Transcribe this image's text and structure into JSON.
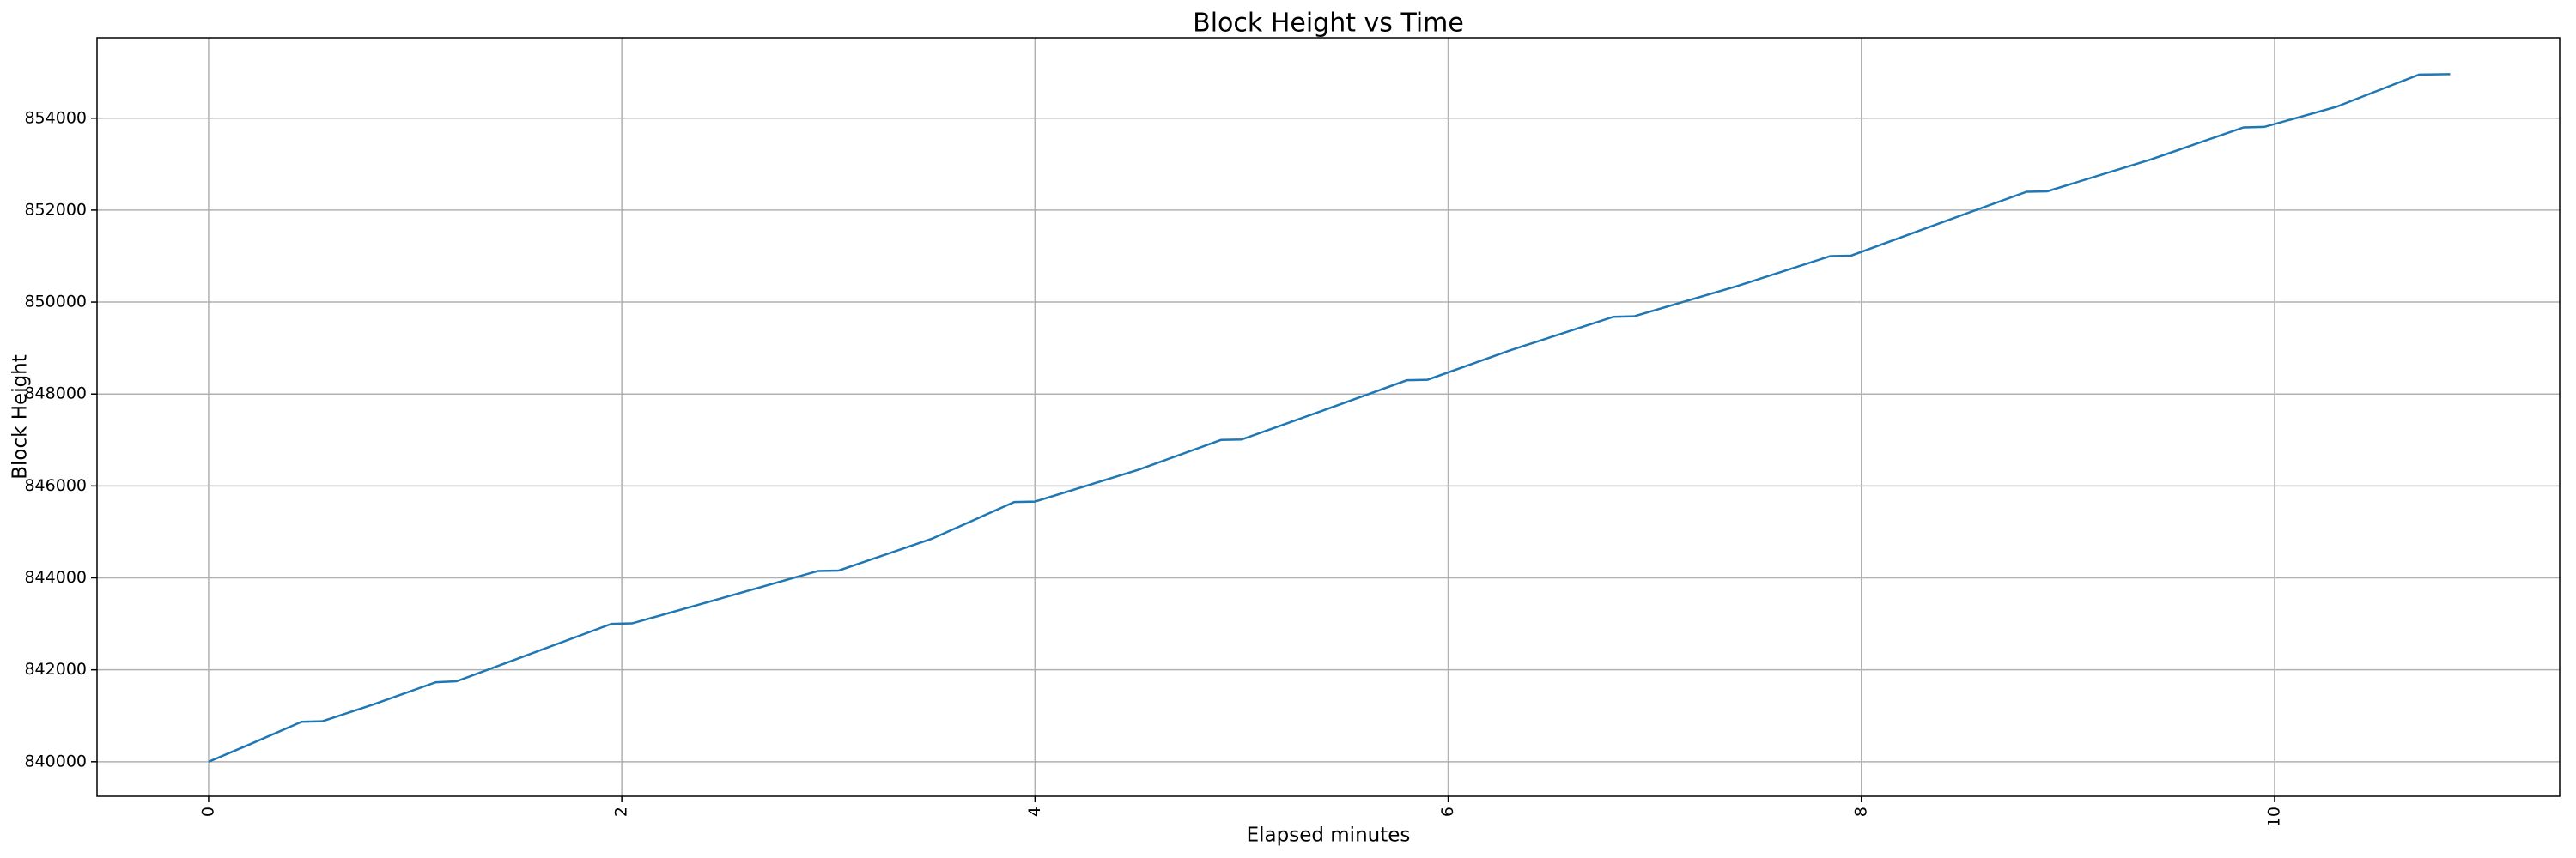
{
  "chart_data": {
    "type": "line",
    "title": "Block Height vs Time",
    "x_label": "Elapsed minutes",
    "y_label": "Block Height",
    "x": [
      0,
      0.2,
      0.45,
      0.55,
      0.8,
      1.1,
      1.2,
      1.5,
      1.95,
      2.05,
      2.5,
      2.95,
      3.05,
      3.5,
      3.9,
      4.0,
      4.5,
      4.9,
      5.0,
      5.4,
      5.8,
      5.9,
      6.3,
      6.8,
      6.9,
      7.4,
      7.85,
      7.95,
      8.4,
      8.8,
      8.9,
      9.4,
      9.85,
      9.95,
      10.3,
      10.7,
      10.85
    ],
    "series": [
      {
        "name": "Block Height",
        "color": "#1f77b4",
        "values": [
          840000,
          840380,
          840870,
          840880,
          841250,
          841730,
          841750,
          842250,
          843000,
          843010,
          843580,
          844150,
          844160,
          844850,
          845650,
          845660,
          846350,
          847000,
          847010,
          847650,
          848300,
          848310,
          848950,
          849680,
          849690,
          850350,
          851000,
          851010,
          851750,
          852400,
          852410,
          853100,
          853800,
          853810,
          854250,
          854950,
          854960
        ]
      }
    ],
    "xlim": [
      -0.54,
      11.38
    ],
    "ylim": [
      839250,
      855750
    ],
    "xticks": [
      0,
      2,
      4,
      6,
      8,
      10
    ],
    "yticks": [
      840000,
      842000,
      844000,
      846000,
      848000,
      850000,
      852000,
      854000
    ],
    "grid": true
  }
}
